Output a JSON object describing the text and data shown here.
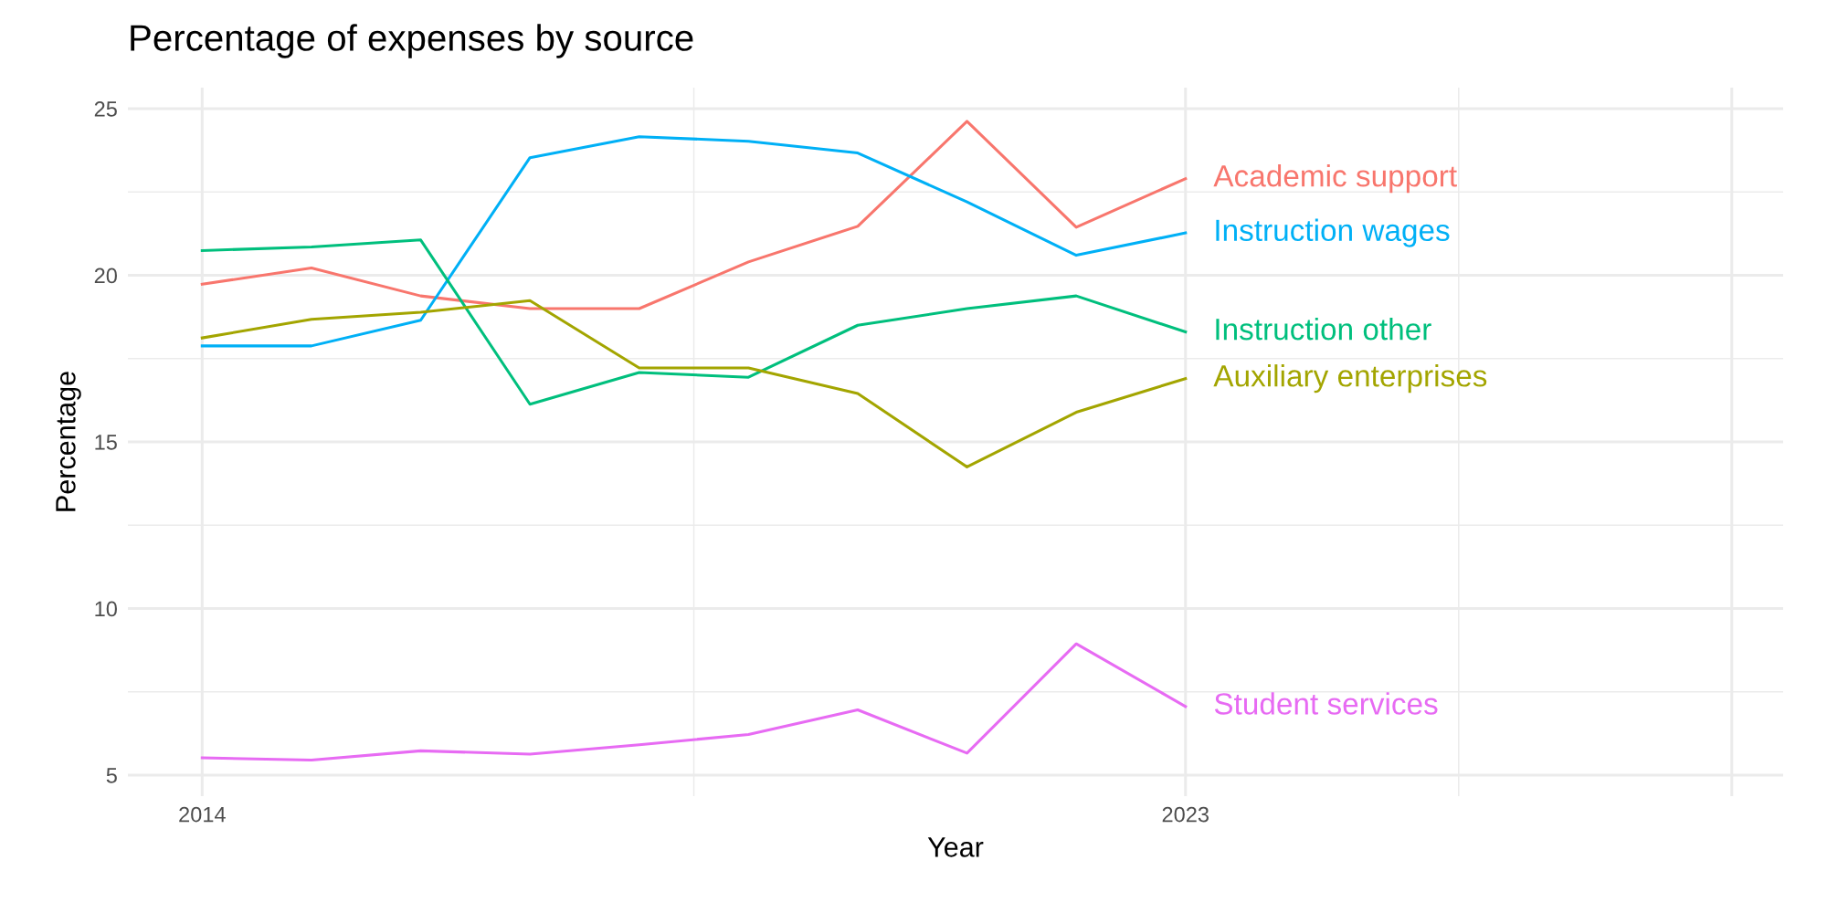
{
  "chart_data": {
    "type": "line",
    "title": "Percentage of expenses by source",
    "xlabel": "Year",
    "ylabel": "Percentage",
    "x": [
      2014,
      2015,
      2016,
      2017,
      2018,
      2019,
      2020,
      2021,
      2022,
      2023
    ],
    "series": [
      {
        "name": "Academic support",
        "color": "#f8766d",
        "values": [
          19.73,
          20.22,
          19.38,
          19.0,
          19.0,
          20.4,
          21.47,
          24.62,
          21.44,
          22.9
        ]
      },
      {
        "name": "Instruction wages",
        "color": "#00b0f6",
        "values": [
          17.88,
          17.88,
          18.65,
          23.53,
          24.16,
          24.02,
          23.67,
          22.2,
          20.6,
          21.27
        ]
      },
      {
        "name": "Instruction other",
        "color": "#00bf7d",
        "values": [
          20.74,
          20.85,
          21.06,
          16.13,
          17.08,
          16.94,
          18.5,
          19.0,
          19.38,
          18.3
        ]
      },
      {
        "name": "Auxiliary enterprises",
        "color": "#a3a500",
        "values": [
          18.12,
          18.68,
          18.89,
          19.24,
          17.22,
          17.22,
          16.45,
          14.25,
          15.89,
          16.9
        ]
      },
      {
        "name": "Student services",
        "color": "#e76bf3",
        "values": [
          5.52,
          5.45,
          5.73,
          5.63,
          5.91,
          6.22,
          6.96,
          5.66,
          8.94,
          7.06
        ]
      }
    ],
    "xlim": [
      2013.32,
      2028.47
    ],
    "ylim": [
      4.37,
      25.63
    ],
    "xticks": [
      2014,
      2023,
      {
        "value": 2028,
        "label": null
      }
    ],
    "yticks": [
      5,
      10,
      15,
      20,
      25
    ],
    "grid": true,
    "legend": false,
    "marker": "none",
    "line_style": "solid"
  }
}
